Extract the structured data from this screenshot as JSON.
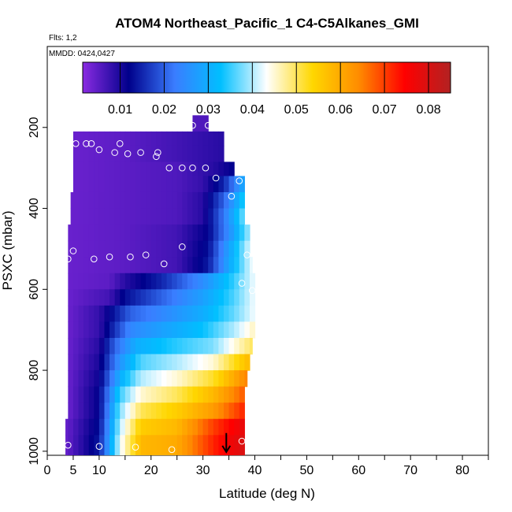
{
  "header": {
    "title": "ATOM4 Northeast_Pacific_1 C4-C5Alkanes_GMI",
    "flights": "Flts: 1,2",
    "mmdd": "MMDD: 0424,0427"
  },
  "colorbar": {
    "range": [
      0.0015,
      0.085
    ],
    "tick_values": [
      0.01,
      0.02,
      0.03,
      0.04,
      0.05,
      0.06,
      0.07,
      0.08
    ],
    "tick_labels": [
      "0.01",
      "0.02",
      "0.03",
      "0.04",
      "0.05",
      "0.06",
      "0.07",
      "0.08"
    ],
    "colors": [
      "#8a2be2",
      "#00008b",
      "#3a7dff",
      "#00bfff",
      "#ffffff",
      "#ffd700",
      "#ff8c00",
      "#ff0000",
      "#b22222"
    ]
  },
  "chart_data": {
    "type": "heatmap",
    "title": "ATOM4 Northeast_Pacific_1 C4-C5Alkanes_GMI",
    "xlabel": "Latitude (deg N)",
    "ylabel": "PSXC (mbar)",
    "xlim": [
      0,
      85
    ],
    "ylim": [
      1010,
      0
    ],
    "x_ticks": [
      0,
      5,
      10,
      20,
      30,
      40,
      50,
      60,
      70,
      80
    ],
    "x_tick_labels": [
      "0",
      "5",
      "10",
      "20",
      "30",
      "40",
      "50",
      "60",
      "70",
      "80"
    ],
    "y_ticks": [
      200,
      400,
      600,
      800,
      1000
    ],
    "y_tick_labels": [
      "200",
      "400",
      "600",
      "800",
      "1000"
    ],
    "lat_columns": [
      3.5,
      4.5,
      5.5,
      6.5,
      7.5,
      8.5,
      9.5,
      10.5,
      11.5,
      12.5,
      13.5,
      14.5,
      15.5,
      16.5,
      17.5,
      18.5,
      19.5,
      20.5,
      21.5,
      22.5,
      23.5,
      24.5,
      25.5,
      26.5,
      27.5,
      28.5,
      29.5,
      30.5,
      31.5,
      32.5,
      33.5,
      34.5,
      35.5,
      36.5,
      37.5,
      38.5,
      39.5
    ],
    "pressure_rows": [
      {
        "top": 170,
        "bottom": 210,
        "lat_start": 28,
        "lat_end": 31,
        "profile": [
          [
            28,
            0.006
          ],
          [
            31,
            0.006
          ]
        ]
      },
      {
        "top": 210,
        "bottom": 245,
        "lat_start": 5,
        "lat_end": 34,
        "profile": [
          [
            5,
            0.004
          ],
          [
            15,
            0.005
          ],
          [
            25,
            0.007
          ],
          [
            34,
            0.009
          ]
        ]
      },
      {
        "top": 245,
        "bottom": 285,
        "lat_start": 5,
        "lat_end": 34,
        "profile": [
          [
            5,
            0.004
          ],
          [
            15,
            0.005
          ],
          [
            25,
            0.007
          ],
          [
            34,
            0.009
          ]
        ]
      },
      {
        "top": 285,
        "bottom": 320,
        "lat_start": 5,
        "lat_end": 36,
        "profile": [
          [
            5,
            0.004
          ],
          [
            15,
            0.005
          ],
          [
            25,
            0.006
          ],
          [
            32,
            0.009
          ],
          [
            36,
            0.012
          ]
        ]
      },
      {
        "top": 320,
        "bottom": 360,
        "lat_start": 5,
        "lat_end": 38,
        "profile": [
          [
            5,
            0.004
          ],
          [
            15,
            0.005
          ],
          [
            25,
            0.006
          ],
          [
            30,
            0.008
          ],
          [
            34,
            0.015
          ],
          [
            38,
            0.03
          ]
        ]
      },
      {
        "top": 360,
        "bottom": 400,
        "lat_start": 4.5,
        "lat_end": 38,
        "profile": [
          [
            4.5,
            0.004
          ],
          [
            15,
            0.005
          ],
          [
            25,
            0.006
          ],
          [
            30,
            0.009
          ],
          [
            34,
            0.02
          ],
          [
            38,
            0.035
          ]
        ]
      },
      {
        "top": 400,
        "bottom": 440,
        "lat_start": 4.5,
        "lat_end": 38,
        "profile": [
          [
            4.5,
            0.004
          ],
          [
            15,
            0.005
          ],
          [
            25,
            0.006
          ],
          [
            30,
            0.009
          ],
          [
            34,
            0.022
          ],
          [
            38,
            0.038
          ]
        ]
      },
      {
        "top": 440,
        "bottom": 480,
        "lat_start": 4,
        "lat_end": 39,
        "profile": [
          [
            4,
            0.004
          ],
          [
            15,
            0.005
          ],
          [
            25,
            0.007
          ],
          [
            31,
            0.012
          ],
          [
            35,
            0.025
          ],
          [
            39,
            0.04
          ]
        ]
      },
      {
        "top": 480,
        "bottom": 520,
        "lat_start": 4,
        "lat_end": 39,
        "profile": [
          [
            4,
            0.004
          ],
          [
            15,
            0.005
          ],
          [
            25,
            0.007
          ],
          [
            31,
            0.013
          ],
          [
            35,
            0.028
          ],
          [
            39,
            0.042
          ]
        ]
      },
      {
        "top": 520,
        "bottom": 560,
        "lat_start": 4,
        "lat_end": 39.5,
        "profile": [
          [
            4,
            0.004
          ],
          [
            15,
            0.005
          ],
          [
            25,
            0.007
          ],
          [
            31,
            0.014
          ],
          [
            35,
            0.029
          ],
          [
            39.5,
            0.043
          ]
        ]
      },
      {
        "top": 560,
        "bottom": 600,
        "lat_start": 4,
        "lat_end": 40,
        "profile": [
          [
            4,
            0.004
          ],
          [
            12,
            0.005
          ],
          [
            15,
            0.009
          ],
          [
            22,
            0.015
          ],
          [
            30,
            0.025
          ],
          [
            36,
            0.035
          ],
          [
            40,
            0.043
          ]
        ]
      },
      {
        "top": 600,
        "bottom": 640,
        "lat_start": 4,
        "lat_end": 40,
        "profile": [
          [
            4,
            0.004
          ],
          [
            12,
            0.007
          ],
          [
            15,
            0.013
          ],
          [
            22,
            0.02
          ],
          [
            30,
            0.028
          ],
          [
            36,
            0.036
          ],
          [
            40,
            0.043
          ]
        ]
      },
      {
        "top": 640,
        "bottom": 680,
        "lat_start": 4,
        "lat_end": 40,
        "profile": [
          [
            4,
            0.004
          ],
          [
            10,
            0.008
          ],
          [
            13,
            0.014
          ],
          [
            16,
            0.02
          ],
          [
            22,
            0.024
          ],
          [
            30,
            0.03
          ],
          [
            36,
            0.037
          ],
          [
            40,
            0.043
          ]
        ]
      },
      {
        "top": 680,
        "bottom": 720,
        "lat_start": 4,
        "lat_end": 40,
        "profile": [
          [
            4,
            0.004
          ],
          [
            10,
            0.008
          ],
          [
            13,
            0.016
          ],
          [
            16,
            0.024
          ],
          [
            22,
            0.028
          ],
          [
            30,
            0.033
          ],
          [
            36,
            0.04
          ],
          [
            40,
            0.046
          ]
        ]
      },
      {
        "top": 720,
        "bottom": 760,
        "lat_start": 4,
        "lat_end": 39.5,
        "profile": [
          [
            4,
            0.004
          ],
          [
            10,
            0.009
          ],
          [
            13,
            0.02
          ],
          [
            17,
            0.03
          ],
          [
            24,
            0.034
          ],
          [
            32,
            0.038
          ],
          [
            39.5,
            0.05
          ]
        ]
      },
      {
        "top": 760,
        "bottom": 800,
        "lat_start": 4,
        "lat_end": 39,
        "profile": [
          [
            4,
            0.004
          ],
          [
            10,
            0.01
          ],
          [
            14,
            0.026
          ],
          [
            18,
            0.036
          ],
          [
            25,
            0.04
          ],
          [
            32,
            0.045
          ],
          [
            39,
            0.058
          ]
        ]
      },
      {
        "top": 800,
        "bottom": 840,
        "lat_start": 4,
        "lat_end": 38.5,
        "profile": [
          [
            4,
            0.004
          ],
          [
            10,
            0.011
          ],
          [
            14,
            0.03
          ],
          [
            18,
            0.04
          ],
          [
            25,
            0.045
          ],
          [
            32,
            0.052
          ],
          [
            38.5,
            0.065
          ]
        ]
      },
      {
        "top": 840,
        "bottom": 880,
        "lat_start": 4,
        "lat_end": 38,
        "profile": [
          [
            4,
            0.004
          ],
          [
            10,
            0.012
          ],
          [
            14,
            0.035
          ],
          [
            18,
            0.045
          ],
          [
            25,
            0.05
          ],
          [
            32,
            0.058
          ],
          [
            38,
            0.068
          ]
        ]
      },
      {
        "top": 880,
        "bottom": 920,
        "lat_start": 4,
        "lat_end": 38,
        "profile": [
          [
            4,
            0.004
          ],
          [
            10,
            0.012
          ],
          [
            14,
            0.038
          ],
          [
            18,
            0.05
          ],
          [
            25,
            0.055
          ],
          [
            32,
            0.062
          ],
          [
            38,
            0.072
          ]
        ]
      },
      {
        "top": 920,
        "bottom": 960,
        "lat_start": 3.5,
        "lat_end": 38,
        "profile": [
          [
            3.5,
            0.004
          ],
          [
            10,
            0.013
          ],
          [
            14,
            0.04
          ],
          [
            18,
            0.055
          ],
          [
            25,
            0.058
          ],
          [
            32,
            0.07
          ],
          [
            38,
            0.078
          ]
        ]
      },
      {
        "top": 960,
        "bottom": 1010,
        "lat_start": 3.5,
        "lat_end": 38,
        "profile": [
          [
            3.5,
            0.004
          ],
          [
            10,
            0.014
          ],
          [
            14,
            0.042
          ],
          [
            18,
            0.058
          ],
          [
            25,
            0.06
          ],
          [
            32,
            0.072
          ],
          [
            38,
            0.08
          ]
        ]
      }
    ],
    "observations": [
      {
        "lat": 28,
        "p": 195
      },
      {
        "lat": 31,
        "p": 195
      },
      {
        "lat": 5.5,
        "p": 240
      },
      {
        "lat": 7.5,
        "p": 240
      },
      {
        "lat": 8.5,
        "p": 240
      },
      {
        "lat": 10,
        "p": 255
      },
      {
        "lat": 13,
        "p": 262
      },
      {
        "lat": 14,
        "p": 240
      },
      {
        "lat": 15.5,
        "p": 265
      },
      {
        "lat": 18,
        "p": 262
      },
      {
        "lat": 21,
        "p": 272
      },
      {
        "lat": 21.3,
        "p": 262
      },
      {
        "lat": 23.5,
        "p": 300
      },
      {
        "lat": 26,
        "p": 300
      },
      {
        "lat": 28,
        "p": 300
      },
      {
        "lat": 30.5,
        "p": 300
      },
      {
        "lat": 32.5,
        "p": 325
      },
      {
        "lat": 35.5,
        "p": 370
      },
      {
        "lat": 37,
        "p": 332
      },
      {
        "lat": 39,
        "p": 332
      },
      {
        "lat": 4,
        "p": 525
      },
      {
        "lat": 5,
        "p": 505
      },
      {
        "lat": 9,
        "p": 525
      },
      {
        "lat": 12,
        "p": 520
      },
      {
        "lat": 16,
        "p": 520
      },
      {
        "lat": 19,
        "p": 515
      },
      {
        "lat": 22.5,
        "p": 537
      },
      {
        "lat": 26,
        "p": 495
      },
      {
        "lat": 38.5,
        "p": 515
      },
      {
        "lat": 37.5,
        "p": 585
      },
      {
        "lat": 39.5,
        "p": 603
      },
      {
        "lat": 4,
        "p": 985
      },
      {
        "lat": 10,
        "p": 988
      },
      {
        "lat": 17,
        "p": 990
      },
      {
        "lat": 24,
        "p": 996
      },
      {
        "lat": 37.5,
        "p": 975
      }
    ],
    "marker": {
      "lat": 34.5,
      "p_start": 955,
      "p_end": 1000
    }
  }
}
